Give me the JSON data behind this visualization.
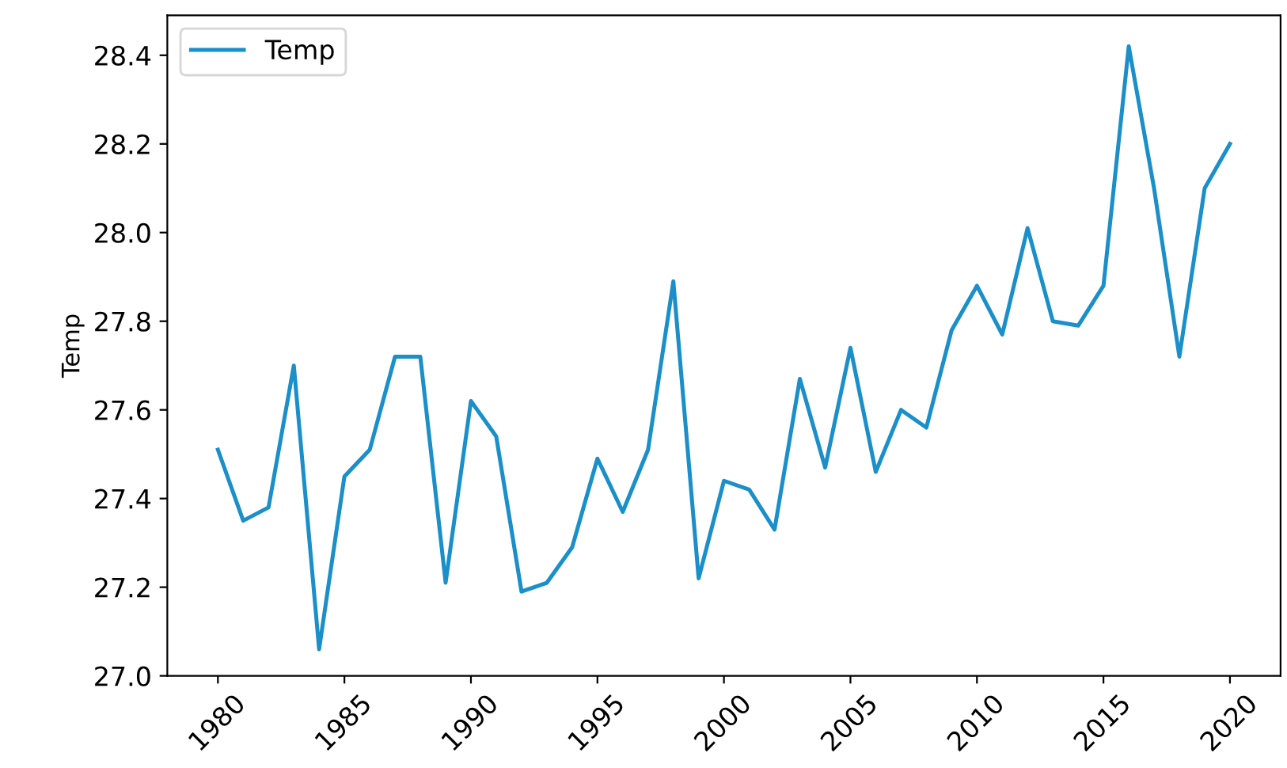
{
  "chart_data": {
    "type": "line",
    "ylabel": "Temp",
    "x": [
      1980,
      1981,
      1982,
      1983,
      1984,
      1985,
      1986,
      1987,
      1988,
      1989,
      1990,
      1991,
      1992,
      1993,
      1994,
      1995,
      1996,
      1997,
      1998,
      1999,
      2000,
      2001,
      2002,
      2003,
      2004,
      2005,
      2006,
      2007,
      2008,
      2009,
      2010,
      2011,
      2012,
      2013,
      2014,
      2015,
      2016,
      2017,
      2018,
      2019,
      2020
    ],
    "series": [
      {
        "name": "Temp",
        "color": "#1a8fc9",
        "values": [
          27.51,
          27.35,
          27.38,
          27.7,
          27.06,
          27.45,
          27.51,
          27.72,
          27.72,
          27.21,
          27.62,
          27.54,
          27.19,
          27.21,
          27.29,
          27.49,
          27.37,
          27.51,
          27.89,
          27.22,
          27.44,
          27.42,
          27.33,
          27.67,
          27.47,
          27.74,
          27.46,
          27.6,
          27.56,
          27.78,
          27.88,
          27.77,
          28.01,
          27.8,
          27.79,
          27.88,
          28.42,
          28.1,
          27.72,
          28.1,
          28.2
        ]
      }
    ],
    "xlim": [
      1978,
      2022
    ],
    "xticks": [
      1980,
      1985,
      1990,
      1995,
      2000,
      2005,
      2010,
      2015,
      2020
    ],
    "ylim": [
      27.0,
      28.49
    ],
    "yticks": [
      {
        "value": 27.0,
        "label": "27.0"
      },
      {
        "value": 27.2,
        "label": "27.2"
      },
      {
        "value": 27.4,
        "label": "27.4"
      },
      {
        "value": 27.6,
        "label": "27.6"
      },
      {
        "value": 27.8,
        "label": "27.8"
      },
      {
        "value": 28.0,
        "label": "28.0"
      },
      {
        "value": 28.2,
        "label": "28.2"
      },
      {
        "value": 28.4,
        "label": "28.4"
      }
    ],
    "legend": "top left",
    "grid": false
  }
}
